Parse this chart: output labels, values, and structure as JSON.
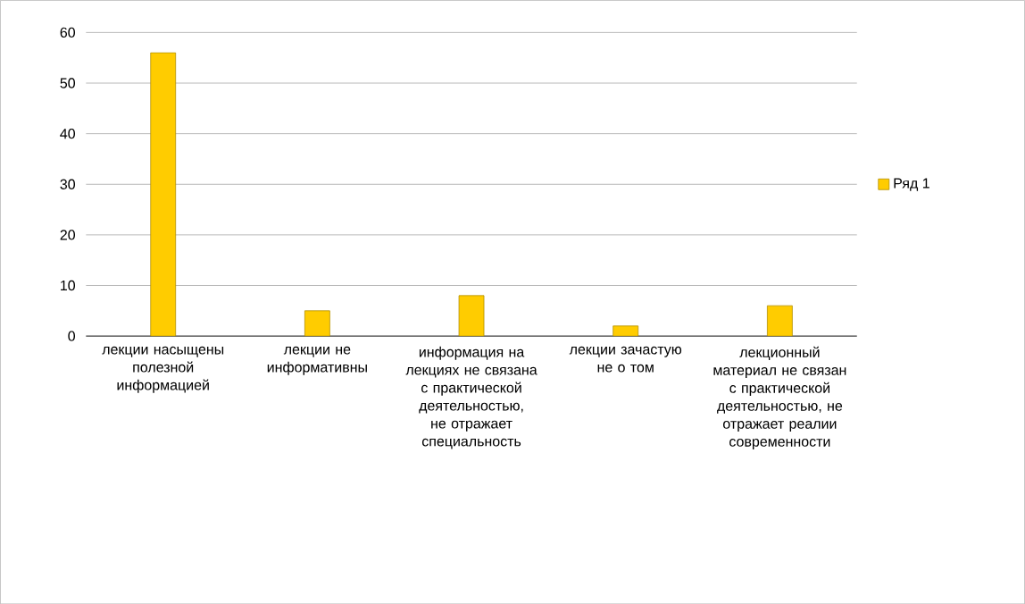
{
  "chart_data": {
    "type": "bar",
    "categories": [
      "лекции насыщены полезной информацией",
      "лекции не информативны",
      "информация на лекциях не связана с практической деятельностью, не отражает специальность",
      "лекции зачастую не о том",
      "лекционный материал не связан с практической деятельностью, не отражает реалии современности"
    ],
    "series": [
      {
        "name": "Ряд 1",
        "color": "#ffcc00",
        "values": [
          56,
          5,
          8,
          2,
          6
        ]
      }
    ],
    "ylim": [
      0,
      60
    ],
    "yticks": [
      0,
      10,
      20,
      30,
      40,
      50,
      60
    ],
    "grid": "y",
    "legend": "right"
  }
}
